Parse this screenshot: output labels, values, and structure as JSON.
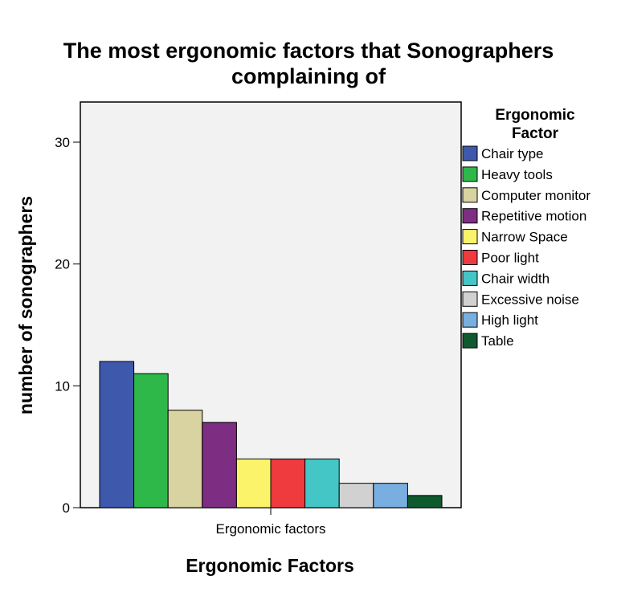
{
  "chart_data": {
    "type": "bar",
    "title_lines": [
      "The most ergonomic factors that Sonographers",
      "complaining of"
    ],
    "xlabel": "Ergonomic Factors",
    "ylabel": "number of sonographers",
    "category_label": "Ergonomic factors",
    "ylim": [
      0,
      32
    ],
    "yticks": [
      0,
      10,
      20,
      30
    ],
    "legend_title_lines": [
      "Ergonomic",
      "Factor"
    ],
    "legend_position": "right",
    "grid": false,
    "background": "#f2f2f2",
    "series": [
      {
        "name": "Chair type",
        "value": 12,
        "color": "#3e58ac"
      },
      {
        "name": "Heavy tools",
        "value": 11,
        "color": "#2eb84a"
      },
      {
        "name": "Computer monitor",
        "value": 8,
        "color": "#d8d3a0"
      },
      {
        "name": "Repetitive motion",
        "value": 7,
        "color": "#7e2e82"
      },
      {
        "name": "Narrow Space",
        "value": 4,
        "color": "#fbf46a"
      },
      {
        "name": "Poor light",
        "value": 4,
        "color": "#ef3a3e"
      },
      {
        "name": "Chair width",
        "value": 4,
        "color": "#44c6c6"
      },
      {
        "name": "Excessive noise",
        "value": 2,
        "color": "#d1d1d1"
      },
      {
        "name": "High light",
        "value": 2,
        "color": "#79aee0"
      },
      {
        "name": "Table",
        "value": 1,
        "color": "#0e5a2e"
      }
    ]
  }
}
